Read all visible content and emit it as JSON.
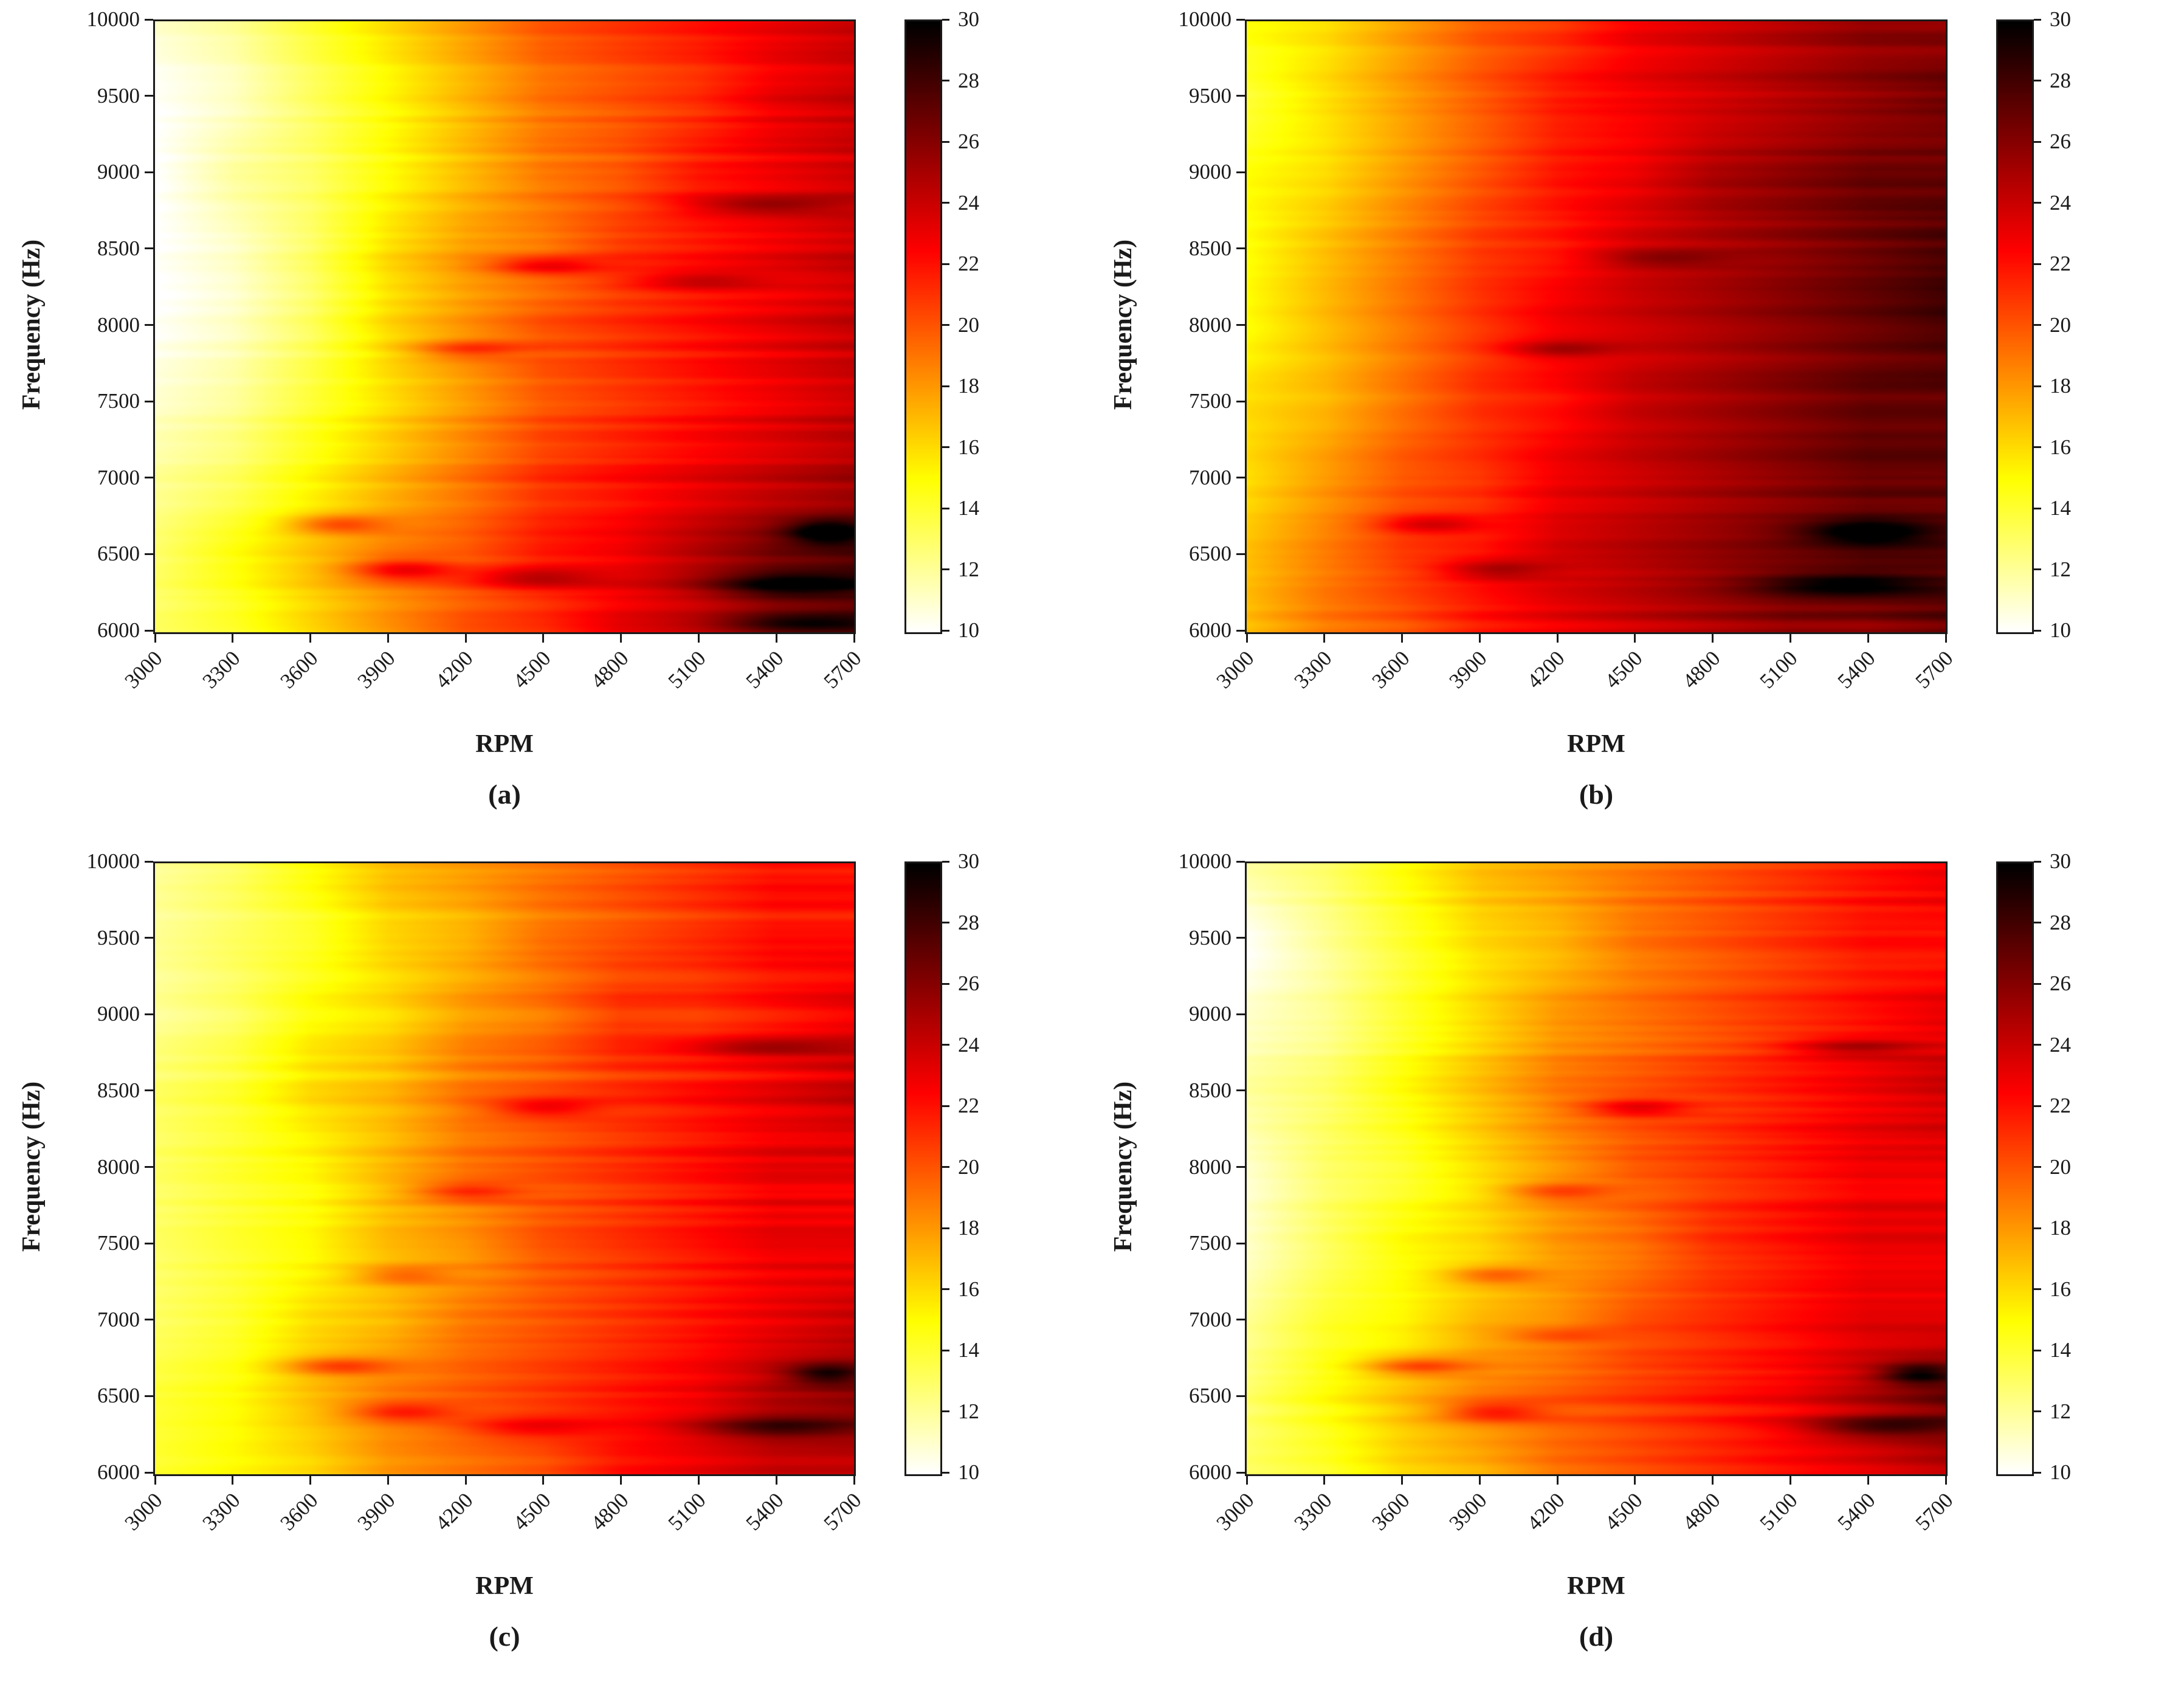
{
  "chart_data": {
    "type": "heatmap",
    "title": "",
    "x": {
      "label": "RPM",
      "range": [
        3000,
        5700
      ],
      "ticks": [
        3000,
        3300,
        3600,
        3900,
        4200,
        4500,
        4800,
        5100,
        5400,
        5700
      ]
    },
    "y": {
      "label": "Frequency (Hz)",
      "range": [
        6000,
        10000
      ],
      "ticks": [
        6000,
        6500,
        7000,
        7500,
        8000,
        8500,
        9000,
        9500,
        10000
      ]
    },
    "z": {
      "range": [
        10,
        30
      ],
      "ticks": [
        10,
        12,
        14,
        16,
        18,
        20,
        22,
        24,
        26,
        28,
        30
      ],
      "colormap": "hot-reversed (low=white, high=black)",
      "colorbar_position": "right"
    },
    "grid_x_rpm": [
      3000,
      3300,
      3600,
      3900,
      4200,
      4500,
      4800,
      5100,
      5400,
      5700
    ],
    "grid_y_hz": [
      6000,
      6500,
      7000,
      7500,
      8000,
      8500,
      9000,
      9500,
      10000
    ],
    "panels": [
      {
        "label": "(a)",
        "seed": 11,
        "grid": [
          [
            13,
            14,
            16,
            18,
            20,
            21,
            23,
            24,
            26,
            27
          ],
          [
            13,
            15,
            17,
            19,
            20,
            22,
            23,
            25,
            27,
            28
          ],
          [
            12,
            13,
            15,
            17,
            19,
            21,
            22,
            23,
            24,
            25
          ],
          [
            11,
            12,
            14,
            16,
            18,
            20,
            21,
            22,
            23,
            24
          ],
          [
            10,
            11,
            13,
            16,
            18,
            20,
            21,
            22,
            23,
            24
          ],
          [
            10,
            11,
            13,
            16,
            18,
            19,
            21,
            22,
            23,
            24
          ],
          [
            10,
            12,
            13,
            15,
            17,
            19,
            20,
            22,
            23,
            24
          ],
          [
            10,
            11,
            13,
            15,
            17,
            19,
            20,
            21,
            23,
            24
          ],
          [
            11,
            12,
            14,
            16,
            18,
            20,
            21,
            22,
            23,
            24
          ]
        ],
        "hotspots": [
          [
            3700,
            6700,
            3.5,
            180,
            60
          ],
          [
            3950,
            6400,
            4,
            200,
            70
          ],
          [
            4450,
            6350,
            3,
            250,
            70
          ],
          [
            4200,
            7850,
            3,
            200,
            60
          ],
          [
            4500,
            8400,
            3.5,
            200,
            60
          ],
          [
            5100,
            8300,
            2.5,
            250,
            60
          ],
          [
            5350,
            8800,
            3,
            300,
            60
          ],
          [
            5450,
            6300,
            4,
            300,
            80
          ],
          [
            5600,
            6650,
            5,
            150,
            80
          ],
          [
            5500,
            6050,
            3,
            300,
            60
          ]
        ]
      },
      {
        "label": "(b)",
        "seed": 22,
        "grid": [
          [
            17,
            19,
            20,
            22,
            23,
            24,
            25,
            26,
            26,
            27
          ],
          [
            17,
            19,
            21,
            22,
            24,
            25,
            26,
            27,
            28,
            28
          ],
          [
            16,
            18,
            20,
            21,
            23,
            24,
            25,
            26,
            27,
            27
          ],
          [
            16,
            17,
            19,
            21,
            22,
            24,
            25,
            26,
            27,
            27
          ],
          [
            15,
            17,
            19,
            21,
            23,
            24,
            25,
            26,
            27,
            28
          ],
          [
            15,
            17,
            19,
            21,
            22,
            24,
            25,
            26,
            27,
            28
          ],
          [
            15,
            16,
            18,
            20,
            22,
            23,
            25,
            26,
            27,
            27
          ],
          [
            14,
            16,
            18,
            20,
            22,
            23,
            24,
            25,
            26,
            27
          ],
          [
            15,
            16,
            18,
            20,
            21,
            23,
            24,
            25,
            26,
            26
          ]
        ],
        "hotspots": [
          [
            3700,
            6700,
            3,
            200,
            60
          ],
          [
            3950,
            6400,
            3,
            200,
            70
          ],
          [
            4200,
            7850,
            2.5,
            200,
            60
          ],
          [
            5400,
            6650,
            4,
            250,
            80
          ],
          [
            5300,
            6300,
            3.5,
            350,
            80
          ],
          [
            4600,
            8450,
            2,
            250,
            60
          ]
        ]
      },
      {
        "label": "(c)",
        "seed": 33,
        "grid": [
          [
            14,
            15,
            16,
            18,
            19,
            20,
            22,
            23,
            24,
            24
          ],
          [
            14,
            15,
            17,
            19,
            20,
            21,
            22,
            23,
            25,
            26
          ],
          [
            13,
            14,
            16,
            17,
            19,
            20,
            21,
            22,
            23,
            24
          ],
          [
            13,
            14,
            15,
            17,
            18,
            20,
            21,
            22,
            23,
            23
          ],
          [
            13,
            14,
            15,
            17,
            19,
            20,
            21,
            22,
            23,
            23
          ],
          [
            13,
            14,
            16,
            17,
            19,
            20,
            21,
            22,
            23,
            24
          ],
          [
            12,
            13,
            15,
            16,
            18,
            19,
            21,
            21,
            22,
            23
          ],
          [
            12,
            13,
            14,
            16,
            17,
            19,
            20,
            21,
            22,
            22
          ],
          [
            12,
            13,
            15,
            17,
            18,
            19,
            20,
            21,
            22,
            22
          ]
        ],
        "hotspots": [
          [
            3700,
            6700,
            3.5,
            200,
            60
          ],
          [
            3950,
            6400,
            3,
            200,
            60
          ],
          [
            4450,
            6300,
            2.5,
            250,
            70
          ],
          [
            4200,
            7850,
            3,
            200,
            60
          ],
          [
            4500,
            8400,
            3,
            200,
            60
          ],
          [
            3950,
            7300,
            2.5,
            180,
            60
          ],
          [
            5400,
            6300,
            4,
            350,
            70
          ],
          [
            5600,
            6650,
            4.5,
            150,
            70
          ],
          [
            5350,
            8800,
            2.5,
            300,
            60
          ]
        ]
      },
      {
        "label": "(d)",
        "seed": 44,
        "grid": [
          [
            13,
            14,
            16,
            17,
            19,
            20,
            21,
            22,
            23,
            24
          ],
          [
            13,
            15,
            17,
            19,
            20,
            21,
            22,
            23,
            25,
            27
          ],
          [
            12,
            14,
            15,
            17,
            18,
            20,
            21,
            22,
            23,
            23
          ],
          [
            11,
            13,
            15,
            16,
            18,
            19,
            21,
            22,
            23,
            23
          ],
          [
            11,
            13,
            14,
            16,
            18,
            20,
            21,
            22,
            23,
            23
          ],
          [
            12,
            13,
            15,
            17,
            19,
            20,
            21,
            22,
            23,
            24
          ],
          [
            11,
            12,
            14,
            16,
            18,
            19,
            20,
            21,
            22,
            23
          ],
          [
            10,
            12,
            14,
            16,
            17,
            19,
            20,
            21,
            22,
            22
          ],
          [
            12,
            13,
            15,
            17,
            18,
            19,
            20,
            21,
            22,
            23
          ]
        ],
        "hotspots": [
          [
            3650,
            6700,
            4,
            200,
            60
          ],
          [
            3950,
            6400,
            3.5,
            200,
            60
          ],
          [
            4200,
            7850,
            3,
            200,
            60
          ],
          [
            4500,
            8400,
            3.5,
            200,
            60
          ],
          [
            3950,
            7300,
            3,
            180,
            60
          ],
          [
            5450,
            6300,
            4,
            300,
            70
          ],
          [
            5600,
            6650,
            5,
            150,
            70
          ],
          [
            5350,
            8800,
            3,
            250,
            60
          ],
          [
            4200,
            6900,
            2,
            200,
            50
          ]
        ]
      }
    ]
  }
}
